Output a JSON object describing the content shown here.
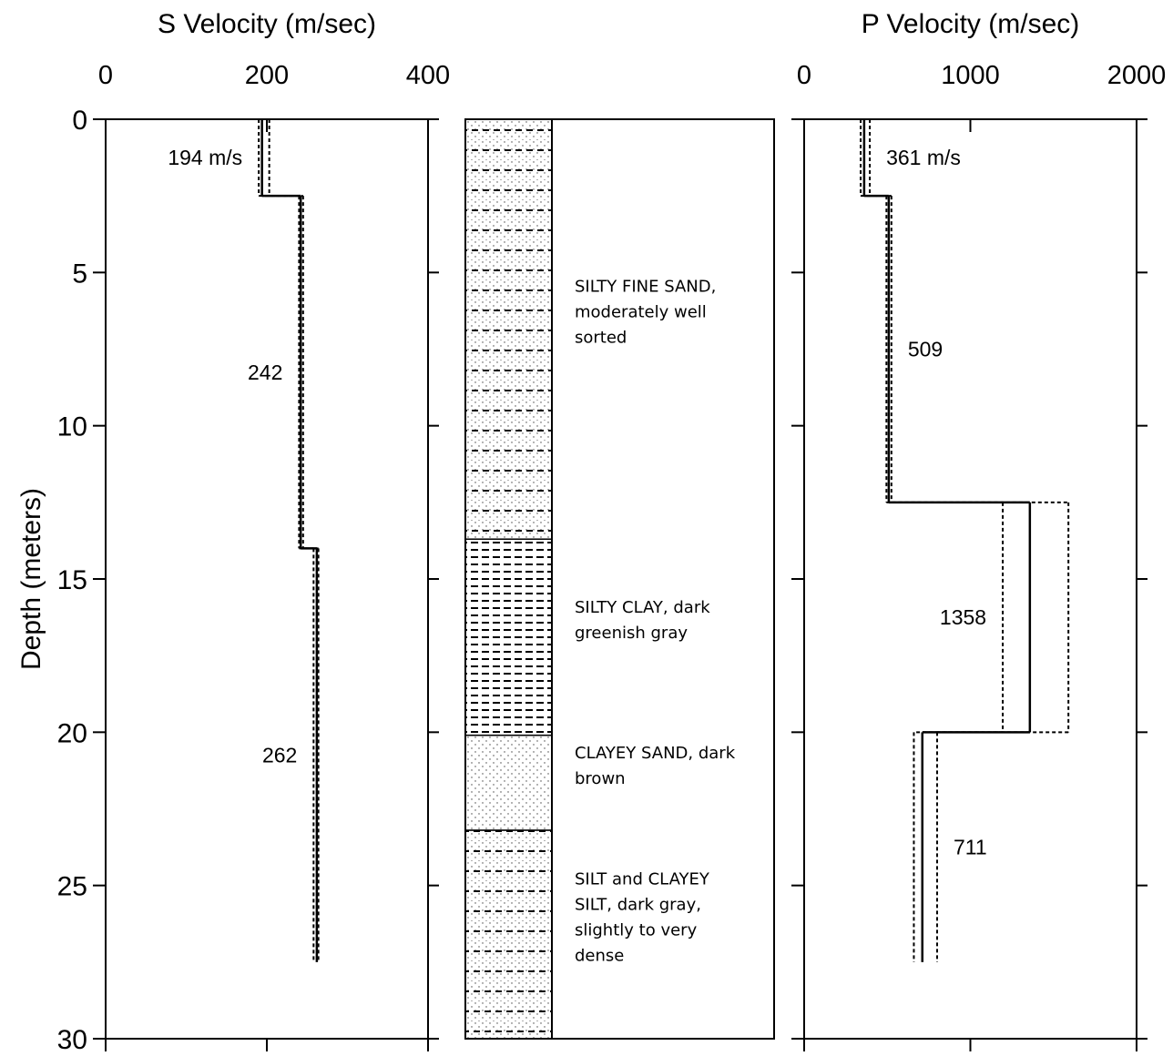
{
  "chart_data": [
    {
      "type": "step",
      "title": "S Velocity (m/sec)",
      "ylabel": "Depth (meters)",
      "xlim": [
        0,
        400
      ],
      "xticks": [
        0,
        200,
        400
      ],
      "ylim": [
        0,
        30
      ],
      "yticks": [
        0,
        5,
        10,
        15,
        20,
        25,
        30
      ],
      "depths": [
        0,
        2.5,
        14,
        27.5
      ],
      "values": [
        194,
        242,
        262
      ],
      "value_labels": [
        "194 m/s",
        "242",
        "262"
      ],
      "low": [
        190,
        240,
        258
      ],
      "high": [
        203,
        245,
        264
      ],
      "color": "#000000"
    },
    {
      "type": "column",
      "ylim": [
        0,
        30
      ],
      "depths": [
        0,
        13.7,
        20.1,
        23.2,
        30
      ],
      "patterns": [
        "silty-sand",
        "clay",
        "sand",
        "silt"
      ],
      "labels": [
        [
          "SILTY FINE SAND,",
          "moderately well",
          "sorted"
        ],
        [
          "SILTY CLAY, dark",
          "greenish gray"
        ],
        [
          "CLAYEY SAND, dark",
          "brown"
        ],
        [
          "SILT and CLAYEY",
          "SILT, dark gray,",
          "slightly to very",
          "dense"
        ]
      ]
    },
    {
      "type": "step",
      "title": "P Velocity (m/sec)",
      "xlim": [
        0,
        2000
      ],
      "xticks": [
        0,
        1000,
        2000
      ],
      "ylim": [
        0,
        30
      ],
      "yticks": [
        0,
        5,
        10,
        15,
        20,
        25,
        30
      ],
      "depths": [
        0,
        2.5,
        12.5,
        20,
        27.5
      ],
      "values": [
        361,
        509,
        1358,
        711
      ],
      "value_labels": [
        "361 m/s",
        "509",
        "1358",
        "711"
      ],
      "low": [
        340,
        495,
        1195,
        660
      ],
      "high": [
        395,
        525,
        1590,
        800
      ],
      "color": "#000000"
    }
  ]
}
